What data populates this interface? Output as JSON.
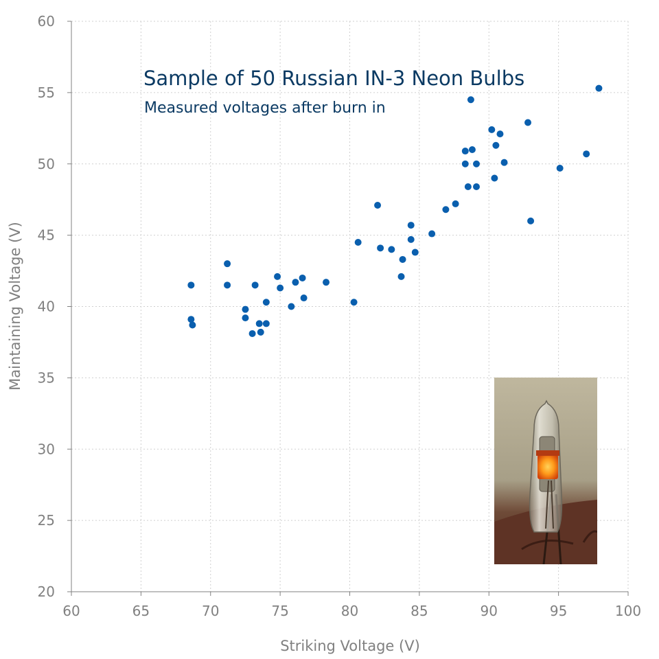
{
  "chart_data": {
    "type": "scatter",
    "title": "Sample of 50 Russian IN-3 Neon Bulbs",
    "subtitle": "Measured voltages after burn in",
    "xlabel": "Striking Voltage (V)",
    "ylabel": "Maintaining Voltage (V)",
    "xlim": [
      60,
      100
    ],
    "ylim": [
      20,
      60
    ],
    "xticks": [
      "60",
      "65",
      "70",
      "75",
      "80",
      "85",
      "90",
      "95",
      "100"
    ],
    "yticks": [
      "20",
      "25",
      "30",
      "35",
      "40",
      "45",
      "50",
      "55",
      "60"
    ],
    "grid": true,
    "marker_color": "#0a5fae",
    "inset_image": "neon-bulb-photo",
    "points": [
      [
        68.6,
        41.5
      ],
      [
        68.6,
        39.1
      ],
      [
        68.7,
        38.7
      ],
      [
        71.2,
        43.0
      ],
      [
        71.2,
        41.5
      ],
      [
        72.5,
        39.8
      ],
      [
        72.5,
        39.2
      ],
      [
        73.0,
        38.1
      ],
      [
        73.2,
        41.5
      ],
      [
        73.5,
        38.8
      ],
      [
        73.6,
        38.2
      ],
      [
        74.0,
        40.3
      ],
      [
        74.0,
        38.8
      ],
      [
        74.8,
        42.1
      ],
      [
        75.0,
        41.3
      ],
      [
        75.8,
        40.0
      ],
      [
        76.1,
        41.7
      ],
      [
        76.6,
        42.0
      ],
      [
        76.7,
        40.6
      ],
      [
        78.3,
        41.7
      ],
      [
        80.3,
        40.3
      ],
      [
        80.6,
        44.5
      ],
      [
        82.0,
        47.1
      ],
      [
        82.2,
        44.1
      ],
      [
        83.0,
        44.0
      ],
      [
        83.7,
        42.1
      ],
      [
        83.8,
        43.3
      ],
      [
        84.4,
        45.7
      ],
      [
        84.4,
        44.7
      ],
      [
        84.7,
        43.8
      ],
      [
        85.9,
        45.1
      ],
      [
        86.9,
        46.8
      ],
      [
        87.6,
        47.2
      ],
      [
        88.3,
        50.9
      ],
      [
        88.3,
        50.0
      ],
      [
        88.5,
        48.4
      ],
      [
        88.7,
        54.5
      ],
      [
        88.8,
        51.0
      ],
      [
        89.1,
        50.0
      ],
      [
        89.1,
        48.4
      ],
      [
        90.2,
        52.4
      ],
      [
        90.4,
        49.0
      ],
      [
        90.5,
        51.3
      ],
      [
        90.8,
        52.1
      ],
      [
        91.1,
        50.1
      ],
      [
        92.8,
        52.9
      ],
      [
        93.0,
        46.0
      ],
      [
        95.1,
        49.7
      ],
      [
        97.0,
        50.7
      ],
      [
        97.9,
        55.3
      ]
    ]
  }
}
